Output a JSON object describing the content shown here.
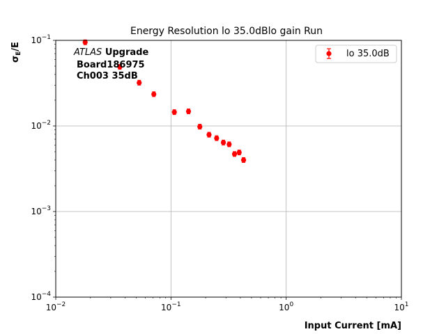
{
  "chart_data": {
    "type": "scatter",
    "title": "Energy Resolution lo 35.0dBlo gain Run",
    "xlabel": "Input Current [mA]",
    "ylabel_main": "σ",
    "ylabel_sub": "E",
    "ylabel_tail": "/E",
    "xscale": "log",
    "yscale": "log",
    "xlim": [
      0.01,
      10
    ],
    "ylim": [
      0.0001,
      0.1
    ],
    "x_ticks": [
      {
        "base": "10",
        "exp": "−2"
      },
      {
        "base": "10",
        "exp": "−1"
      },
      {
        "base": "10",
        "exp": "0"
      },
      {
        "base": "10",
        "exp": "1"
      }
    ],
    "y_ticks": [
      {
        "base": "10",
        "exp": "−4"
      },
      {
        "base": "10",
        "exp": "−3"
      },
      {
        "base": "10",
        "exp": "−2"
      },
      {
        "base": "10",
        "exp": "−1"
      }
    ],
    "grid": true,
    "legend_position": "top-right",
    "annotation": {
      "atlas": "ATLAS",
      "upgrade": "Upgrade",
      "board": "Board186975",
      "channel": "Ch003 35dB"
    },
    "series": [
      {
        "name": "lo 35.0dB",
        "color": "#ff0000",
        "marker": "circle",
        "points": [
          {
            "x": 0.018,
            "y": 0.095
          },
          {
            "x": 0.036,
            "y": 0.049
          },
          {
            "x": 0.053,
            "y": 0.032
          },
          {
            "x": 0.071,
            "y": 0.0235
          },
          {
            "x": 0.107,
            "y": 0.0145
          },
          {
            "x": 0.142,
            "y": 0.0148
          },
          {
            "x": 0.178,
            "y": 0.0098
          },
          {
            "x": 0.214,
            "y": 0.0079
          },
          {
            "x": 0.249,
            "y": 0.0072
          },
          {
            "x": 0.285,
            "y": 0.0064
          },
          {
            "x": 0.32,
            "y": 0.0061
          },
          {
            "x": 0.356,
            "y": 0.0047
          },
          {
            "x": 0.391,
            "y": 0.0049
          },
          {
            "x": 0.427,
            "y": 0.004
          }
        ]
      }
    ]
  }
}
